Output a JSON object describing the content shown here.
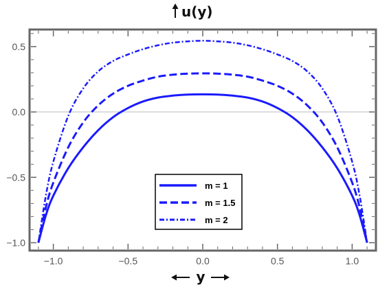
{
  "chart_data": {
    "type": "line",
    "title": "",
    "ylabel": "u(y)",
    "xlabel": "y",
    "xlim": [
      -1.15,
      1.15
    ],
    "ylim": [
      -1.05,
      0.62
    ],
    "xticks": [
      -1.0,
      -0.5,
      0.0,
      0.5,
      1.0
    ],
    "xtick_labels": [
      "−1.0",
      "−0.5",
      "0.0",
      "0.5",
      "1.0"
    ],
    "yticks": [
      -1.0,
      -0.5,
      0.0,
      0.5
    ],
    "ytick_labels": [
      "−1.0",
      "−0.5",
      "0.0",
      "0.5"
    ],
    "grid": false,
    "legend_position": "bottom-center",
    "series": [
      {
        "name": "m = 1",
        "style": "solid",
        "color": "#1a1aff",
        "x": [
          -1.1,
          -1.05,
          -1.0,
          -0.9,
          -0.8,
          -0.7,
          -0.6,
          -0.5,
          -0.4,
          -0.3,
          -0.2,
          -0.1,
          0.0,
          0.1,
          0.2,
          0.3,
          0.4,
          0.5,
          0.6,
          0.7,
          0.8,
          0.9,
          1.0,
          1.05,
          1.1
        ],
        "y": [
          -1.0,
          -0.79,
          -0.64,
          -0.43,
          -0.27,
          -0.14,
          -0.04,
          0.03,
          0.08,
          0.11,
          0.125,
          0.133,
          0.135,
          0.133,
          0.125,
          0.11,
          0.08,
          0.03,
          -0.04,
          -0.14,
          -0.27,
          -0.43,
          -0.64,
          -0.79,
          -1.0
        ]
      },
      {
        "name": "m = 1.5",
        "style": "dashed",
        "color": "#1a1aff",
        "x": [
          -1.1,
          -1.05,
          -1.0,
          -0.9,
          -0.8,
          -0.7,
          -0.6,
          -0.5,
          -0.4,
          -0.3,
          -0.2,
          -0.1,
          0.0,
          0.1,
          0.2,
          0.3,
          0.4,
          0.5,
          0.6,
          0.7,
          0.8,
          0.9,
          1.0,
          1.05,
          1.1
        ],
        "y": [
          -1.0,
          -0.73,
          -0.54,
          -0.27,
          -0.08,
          0.05,
          0.14,
          0.2,
          0.24,
          0.27,
          0.285,
          0.293,
          0.295,
          0.293,
          0.285,
          0.27,
          0.24,
          0.2,
          0.14,
          0.05,
          -0.08,
          -0.27,
          -0.54,
          -0.73,
          -1.0
        ]
      },
      {
        "name": "m = 2",
        "style": "dashdot",
        "color": "#1a1aff",
        "x": [
          -1.1,
          -1.05,
          -1.0,
          -0.9,
          -0.8,
          -0.7,
          -0.6,
          -0.5,
          -0.4,
          -0.3,
          -0.2,
          -0.1,
          0.0,
          0.1,
          0.2,
          0.3,
          0.4,
          0.5,
          0.6,
          0.7,
          0.8,
          0.9,
          1.0,
          1.05,
          1.1
        ],
        "y": [
          -1.0,
          -0.64,
          -0.38,
          -0.03,
          0.18,
          0.31,
          0.39,
          0.44,
          0.48,
          0.51,
          0.53,
          0.54,
          0.545,
          0.54,
          0.53,
          0.51,
          0.48,
          0.44,
          0.39,
          0.31,
          0.18,
          -0.03,
          -0.38,
          -0.64,
          -1.0
        ]
      }
    ]
  }
}
